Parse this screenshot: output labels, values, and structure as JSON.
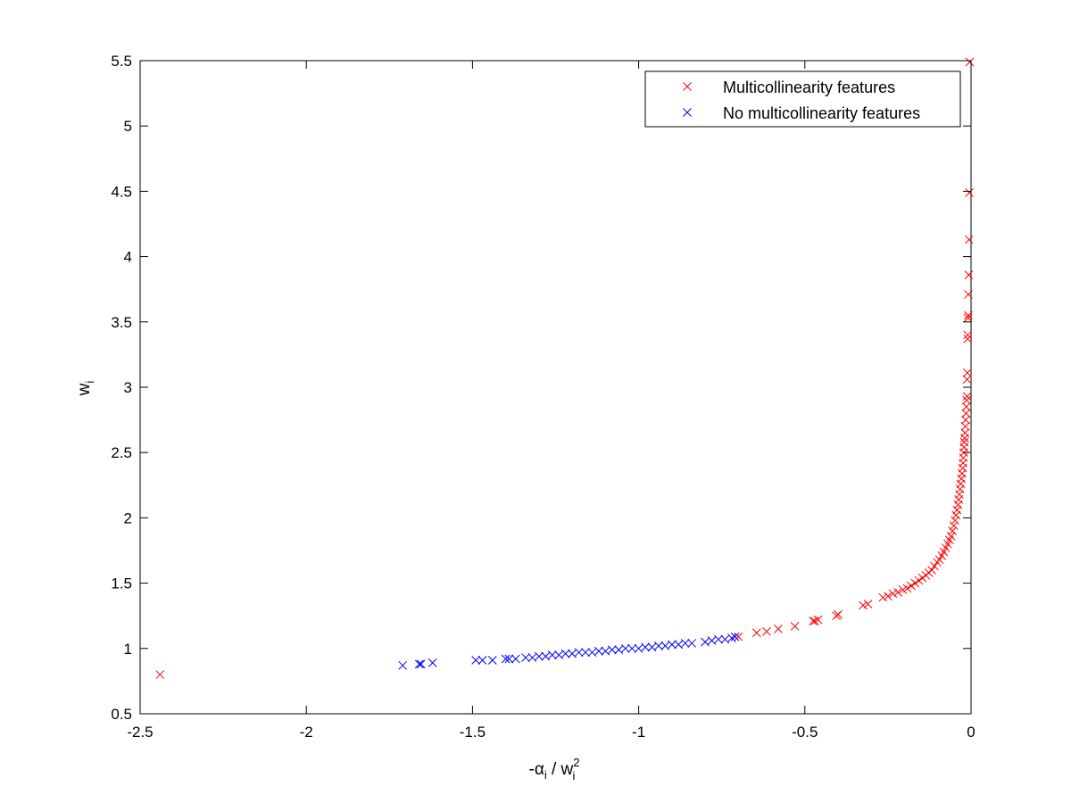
{
  "chart_data": {
    "type": "scatter",
    "title": "",
    "xlabel": {
      "base": "-α",
      "sub1": "i",
      "mid": " / w",
      "sub2": "i",
      "sup2": "2"
    },
    "ylabel": {
      "base": "w",
      "sub": "i"
    },
    "xlim": [
      -2.5,
      0
    ],
    "ylim": [
      0.5,
      5.5
    ],
    "xticks": [
      -2.5,
      -2,
      -1.5,
      -1,
      -0.5,
      0
    ],
    "xtick_labels": [
      "-2.5",
      "-2",
      "-1.5",
      "-1",
      "-0.5",
      "0"
    ],
    "yticks": [
      0.5,
      1,
      1.5,
      2,
      2.5,
      3,
      3.5,
      4,
      4.5,
      5,
      5.5
    ],
    "ytick_labels": [
      "0.5",
      "1",
      "1.5",
      "2",
      "2.5",
      "3",
      "3.5",
      "4",
      "4.5",
      "5",
      "5.5"
    ],
    "grid": false,
    "legend_position": "top-right",
    "marker": "x",
    "series": [
      {
        "name": "Multicollinearity features",
        "color": "#ff0000",
        "points": [
          [
            -2.44,
            0.8
          ],
          [
            -0.004,
            5.49
          ],
          [
            -0.005,
            4.49
          ],
          [
            -0.006,
            4.13
          ],
          [
            -0.007,
            3.86
          ],
          [
            -0.008,
            3.71
          ],
          [
            -0.008,
            3.55
          ],
          [
            -0.009,
            3.53
          ],
          [
            -0.01,
            3.4
          ],
          [
            -0.01,
            3.37
          ],
          [
            -0.011,
            3.11
          ],
          [
            -0.012,
            3.06
          ],
          [
            -0.012,
            2.93
          ],
          [
            -0.013,
            2.9
          ],
          [
            -0.014,
            2.85
          ],
          [
            -0.015,
            2.8
          ],
          [
            -0.016,
            2.75
          ],
          [
            -0.017,
            2.7
          ],
          [
            -0.018,
            2.65
          ],
          [
            -0.019,
            2.61
          ],
          [
            -0.02,
            2.58
          ],
          [
            -0.021,
            2.54
          ],
          [
            -0.022,
            2.5
          ],
          [
            -0.023,
            2.46
          ],
          [
            -0.024,
            2.42
          ],
          [
            -0.025,
            2.38
          ],
          [
            -0.027,
            2.34
          ],
          [
            -0.029,
            2.3
          ],
          [
            -0.031,
            2.26
          ],
          [
            -0.033,
            2.22
          ],
          [
            -0.035,
            2.18
          ],
          [
            -0.037,
            2.14
          ],
          [
            -0.039,
            2.1
          ],
          [
            -0.042,
            2.06
          ],
          [
            -0.045,
            2.02
          ],
          [
            -0.048,
            1.98
          ],
          [
            -0.052,
            1.94
          ],
          [
            -0.056,
            1.9
          ],
          [
            -0.06,
            1.86
          ],
          [
            -0.065,
            1.83
          ],
          [
            -0.07,
            1.8
          ],
          [
            -0.076,
            1.77
          ],
          [
            -0.082,
            1.74
          ],
          [
            -0.088,
            1.71
          ],
          [
            -0.095,
            1.68
          ],
          [
            -0.102,
            1.66
          ],
          [
            -0.11,
            1.63
          ],
          [
            -0.118,
            1.6
          ],
          [
            -0.127,
            1.58
          ],
          [
            -0.136,
            1.56
          ],
          [
            -0.146,
            1.54
          ],
          [
            -0.157,
            1.52
          ],
          [
            -0.168,
            1.5
          ],
          [
            -0.18,
            1.48
          ],
          [
            -0.192,
            1.46
          ],
          [
            -0.205,
            1.45
          ],
          [
            -0.22,
            1.43
          ],
          [
            -0.235,
            1.42
          ],
          [
            -0.25,
            1.4
          ],
          [
            -0.265,
            1.39
          ],
          [
            -0.31,
            1.34
          ],
          [
            -0.325,
            1.33
          ],
          [
            -0.4,
            1.26
          ],
          [
            -0.405,
            1.25
          ],
          [
            -0.46,
            1.22
          ],
          [
            -0.47,
            1.21
          ],
          [
            -0.475,
            1.21
          ],
          [
            -0.53,
            1.17
          ],
          [
            -0.58,
            1.15
          ],
          [
            -0.615,
            1.13
          ],
          [
            -0.645,
            1.12
          ],
          [
            -0.7,
            1.09
          ]
        ]
      },
      {
        "name": "No multicollinearity features",
        "color": "#0000ff",
        "points": [
          [
            -1.71,
            0.87
          ],
          [
            -1.66,
            0.88
          ],
          [
            -1.655,
            0.88
          ],
          [
            -1.62,
            0.89
          ],
          [
            -1.49,
            0.91
          ],
          [
            -1.47,
            0.91
          ],
          [
            -1.44,
            0.91
          ],
          [
            -1.4,
            0.92
          ],
          [
            -1.39,
            0.92
          ],
          [
            -1.37,
            0.92
          ],
          [
            -1.34,
            0.93
          ],
          [
            -1.32,
            0.93
          ],
          [
            -1.3,
            0.94
          ],
          [
            -1.28,
            0.94
          ],
          [
            -1.26,
            0.95
          ],
          [
            -1.24,
            0.95
          ],
          [
            -1.22,
            0.96
          ],
          [
            -1.2,
            0.96
          ],
          [
            -1.18,
            0.97
          ],
          [
            -1.16,
            0.97
          ],
          [
            -1.14,
            0.97
          ],
          [
            -1.12,
            0.98
          ],
          [
            -1.1,
            0.98
          ],
          [
            -1.08,
            0.99
          ],
          [
            -1.06,
            0.99
          ],
          [
            -1.04,
            1.0
          ],
          [
            -1.02,
            1.0
          ],
          [
            -1.0,
            1.0
          ],
          [
            -0.98,
            1.01
          ],
          [
            -0.96,
            1.01
          ],
          [
            -0.94,
            1.02
          ],
          [
            -0.92,
            1.02
          ],
          [
            -0.9,
            1.03
          ],
          [
            -0.88,
            1.03
          ],
          [
            -0.86,
            1.04
          ],
          [
            -0.84,
            1.04
          ],
          [
            -0.8,
            1.05
          ],
          [
            -0.78,
            1.06
          ],
          [
            -0.76,
            1.07
          ],
          [
            -0.74,
            1.07
          ],
          [
            -0.72,
            1.08
          ],
          [
            -0.71,
            1.09
          ]
        ]
      }
    ]
  }
}
